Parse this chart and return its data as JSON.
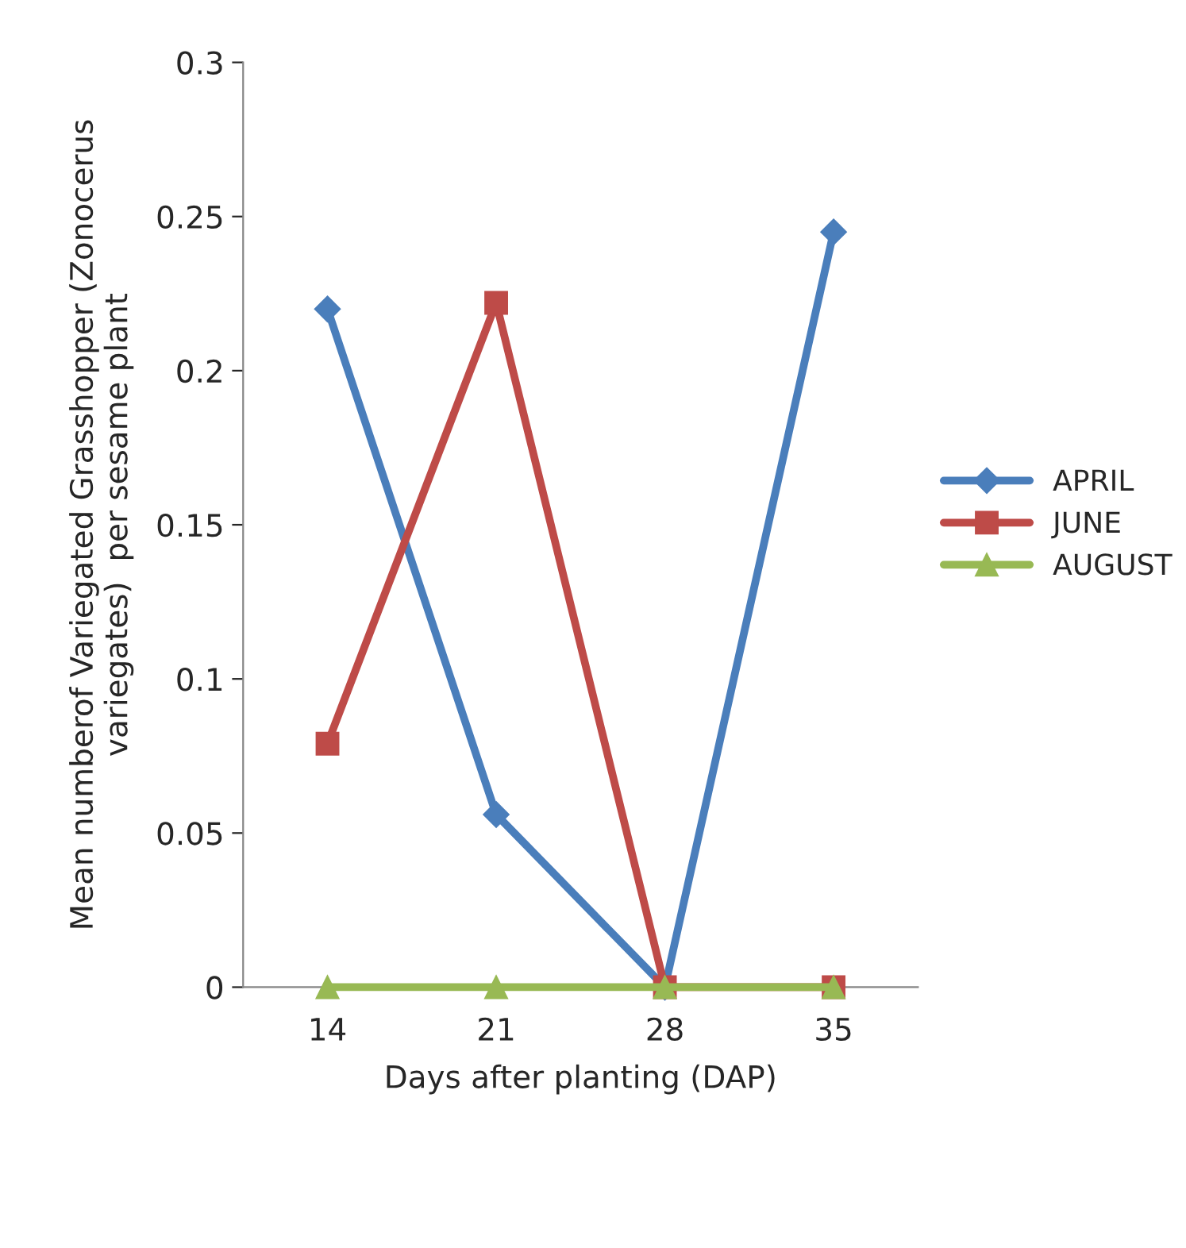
{
  "chart_data": {
    "type": "line",
    "xlabel": "Days after planting (DAP)",
    "ylabel": "Mean numberof Variegated Grasshopper (Zonocerus\nvariegates)  per sesame plant",
    "categories": [
      "14",
      "21",
      "28",
      "35"
    ],
    "series": [
      {
        "name": "APRIL",
        "color": "#4a7ebb",
        "marker": "diamond",
        "values": [
          0.22,
          0.056,
          0,
          0.245
        ]
      },
      {
        "name": "JUNE",
        "color": "#be4b48",
        "marker": "square",
        "values": [
          0.079,
          0.222,
          0,
          0
        ]
      },
      {
        "name": "AUGUST",
        "color": "#98b954",
        "marker": "triangle",
        "values": [
          0,
          0,
          0,
          0
        ]
      }
    ],
    "ylim": [
      0,
      0.3
    ],
    "yticks": [
      0,
      0.05,
      0.1,
      0.15,
      0.2,
      0.25,
      0.3
    ],
    "grid": false,
    "legend": "right"
  }
}
